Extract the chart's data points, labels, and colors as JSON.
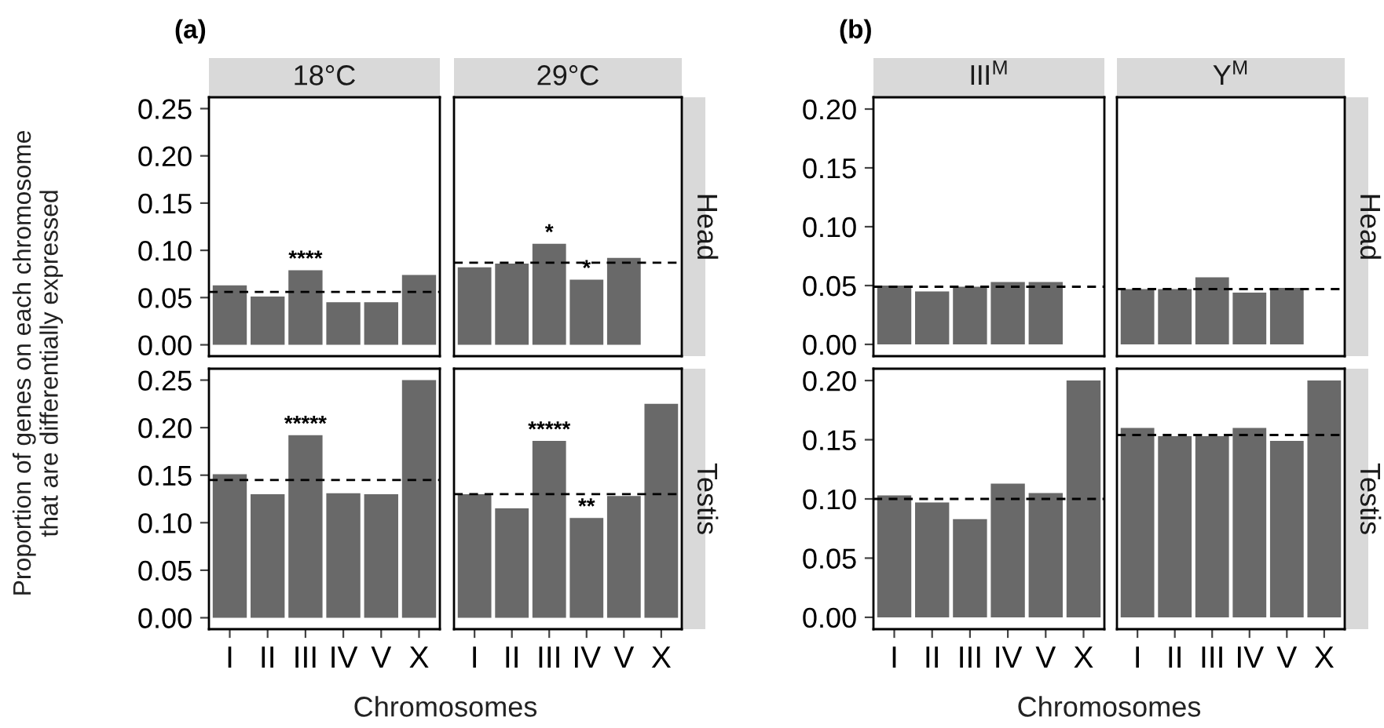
{
  "chart_data": [
    {
      "type": "bar",
      "title": "18°C",
      "ylabel": "Proportion of genes on each chromosome\nthat are differentially expressed",
      "annotations": [
        "(a)",
        {
          "text": "****",
          "x": "III",
          "y": 0.079
        }
      ],
      "categories": [
        "I",
        "II",
        "III",
        "IV",
        "V",
        "X"
      ],
      "values": [
        0.063,
        0.051,
        0.079,
        0.045,
        0.045,
        0.074
      ],
      "color": "#696969",
      "ylim": [
        -0.012,
        0.262
      ],
      "yticks": [
        {
          "value": 0,
          "label": "0.00"
        },
        {
          "value": 0.05,
          "label": "0.05"
        },
        {
          "value": 0.1,
          "label": "0.10"
        },
        {
          "value": 0.15,
          "label": "0.15"
        },
        {
          "value": 0.2,
          "label": "0.20"
        },
        {
          "value": 0.25,
          "label": "0.25"
        }
      ],
      "ref_lines": [
        {
          "axis": "y",
          "value": 0.056,
          "line_style": "dashed",
          "color": "#000000"
        }
      ],
      "tick_labels": "y",
      "grid": false
    },
    {
      "type": "bar",
      "title": "29°C",
      "y2label": "Head",
      "annotations": [
        {
          "text": "*",
          "x": "III",
          "y": 0.107
        },
        {
          "text": "*",
          "x": "IV",
          "y": 0.069
        }
      ],
      "categories": [
        "I",
        "II",
        "III",
        "IV",
        "V",
        "X"
      ],
      "values": [
        0.082,
        0.086,
        0.107,
        0.069,
        0.092,
        0
      ],
      "color": "#696969",
      "ylim": [
        -0.012,
        0.262
      ],
      "ref_lines": [
        {
          "axis": "y",
          "value": 0.087,
          "line_style": "dashed",
          "color": "#000000"
        }
      ],
      "tick_labels": false,
      "grid": false
    },
    {
      "type": "bar",
      "xlabel": "Chromosomes",
      "annotations": [
        {
          "text": "*****",
          "x": "III",
          "y": 0.192
        }
      ],
      "categories": [
        "I",
        "II",
        "III",
        "IV",
        "V",
        "X"
      ],
      "values": [
        0.151,
        0.13,
        0.192,
        0.131,
        0.13,
        0.25
      ],
      "color": "#696969",
      "ylim": [
        -0.012,
        0.262
      ],
      "yticks": [
        {
          "value": 0,
          "label": "0.00"
        },
        {
          "value": 0.05,
          "label": "0.05"
        },
        {
          "value": 0.1,
          "label": "0.10"
        },
        {
          "value": 0.15,
          "label": "0.15"
        },
        {
          "value": 0.2,
          "label": "0.20"
        },
        {
          "value": 0.25,
          "label": "0.25"
        }
      ],
      "ref_lines": [
        {
          "axis": "y",
          "value": 0.145,
          "line_style": "dashed",
          "color": "#000000"
        }
      ],
      "grid": false
    },
    {
      "type": "bar",
      "y2label": "Testis",
      "annotations": [
        {
          "text": "*****",
          "x": "III",
          "y": 0.186
        },
        {
          "text": "**",
          "x": "IV",
          "y": 0.105
        }
      ],
      "categories": [
        "I",
        "II",
        "III",
        "IV",
        "V",
        "X"
      ],
      "values": [
        0.13,
        0.115,
        0.186,
        0.105,
        0.128,
        0.225
      ],
      "color": "#696969",
      "ylim": [
        -0.012,
        0.262
      ],
      "ref_lines": [
        {
          "axis": "y",
          "value": 0.13,
          "line_style": "dashed",
          "color": "#000000"
        }
      ],
      "tick_labels": "x",
      "grid": false
    },
    {
      "type": "bar",
      "title": "III$^{M}$",
      "annotations": [
        "(b)"
      ],
      "categories": [
        "I",
        "II",
        "III",
        "IV",
        "V",
        "X"
      ],
      "values": [
        0.05,
        0.045,
        0.049,
        0.053,
        0.053,
        0
      ],
      "color": "#696969",
      "ylim": [
        -0.01,
        0.21
      ],
      "yticks": [
        {
          "value": 0,
          "label": "0.00"
        },
        {
          "value": 0.05,
          "label": "0.05"
        },
        {
          "value": 0.1,
          "label": "0.10"
        },
        {
          "value": 0.15,
          "label": "0.15"
        },
        {
          "value": 0.2,
          "label": "0.20"
        }
      ],
      "ref_lines": [
        {
          "axis": "y",
          "value": 0.049,
          "line_style": "dashed",
          "color": "#000000"
        }
      ],
      "tick_labels": "y",
      "grid": false
    },
    {
      "type": "bar",
      "title": "Y$^{M}$",
      "y2label": "Head",
      "categories": [
        "I",
        "II",
        "III",
        "IV",
        "V",
        "X"
      ],
      "values": [
        0.047,
        0.047,
        0.057,
        0.044,
        0.048,
        0
      ],
      "color": "#696969",
      "ylim": [
        -0.01,
        0.21
      ],
      "ref_lines": [
        {
          "axis": "y",
          "value": 0.047,
          "line_style": "dashed",
          "color": "#000000"
        }
      ],
      "tick_labels": false,
      "grid": false
    },
    {
      "type": "bar",
      "xlabel": "Chromosomes",
      "categories": [
        "I",
        "II",
        "III",
        "IV",
        "V",
        "X"
      ],
      "values": [
        0.103,
        0.097,
        0.083,
        0.113,
        0.105,
        0.2
      ],
      "color": "#696969",
      "ylim": [
        -0.01,
        0.21
      ],
      "yticks": [
        {
          "value": 0,
          "label": "0.00"
        },
        {
          "value": 0.05,
          "label": "0.05"
        },
        {
          "value": 0.1,
          "label": "0.10"
        },
        {
          "value": 0.15,
          "label": "0.15"
        },
        {
          "value": 0.2,
          "label": "0.20"
        }
      ],
      "ref_lines": [
        {
          "axis": "y",
          "value": 0.1,
          "line_style": "dashed",
          "color": "#000000"
        }
      ],
      "grid": false
    },
    {
      "type": "bar",
      "y2label": "Testis",
      "categories": [
        "I",
        "II",
        "III",
        "IV",
        "V",
        "X"
      ],
      "values": [
        0.16,
        0.153,
        0.153,
        0.16,
        0.149,
        0.2
      ],
      "color": "#696969",
      "ylim": [
        -0.01,
        0.21
      ],
      "ref_lines": [
        {
          "axis": "y",
          "value": 0.154,
          "line_style": "dashed",
          "color": "#000000"
        }
      ],
      "tick_labels": "x",
      "grid": false
    }
  ]
}
